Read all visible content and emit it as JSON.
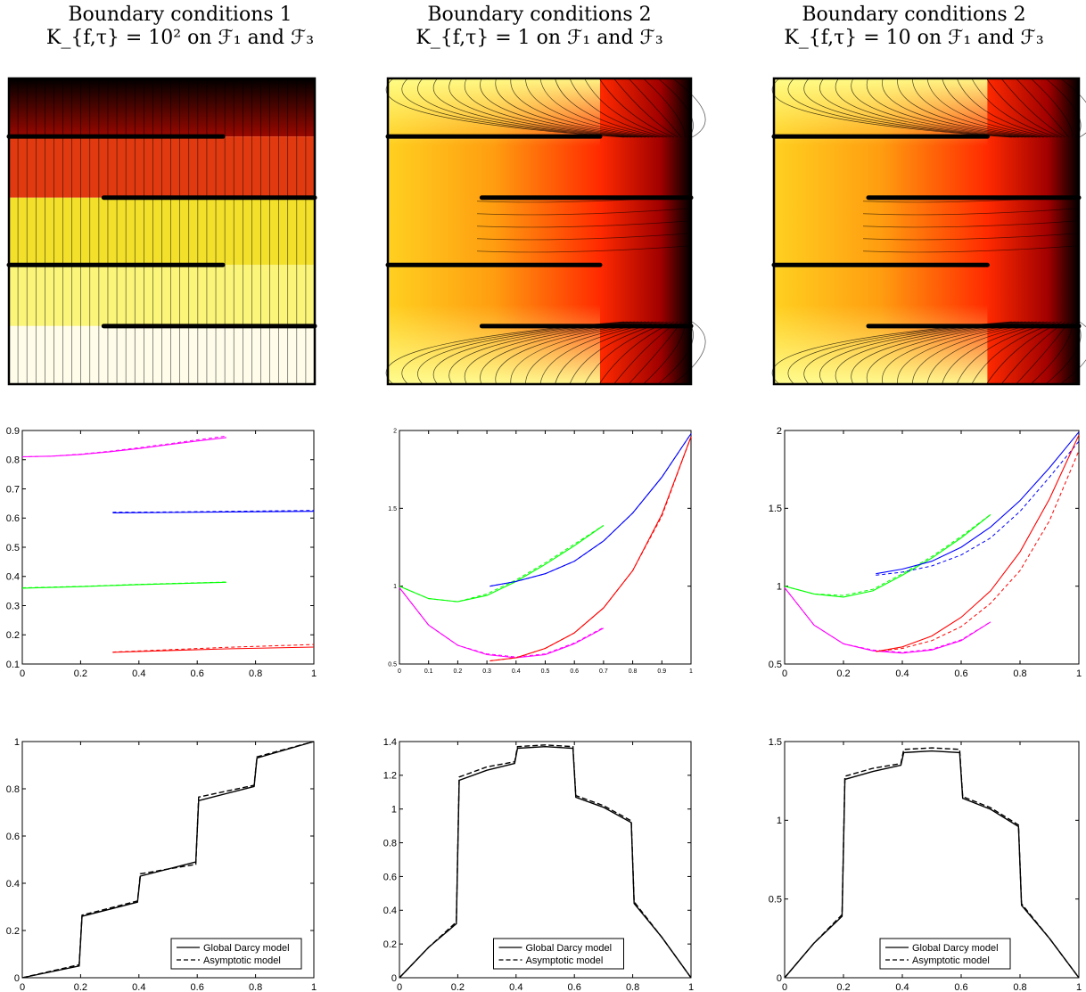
{
  "columns": [
    {
      "title_line1": "Boundary conditions 1",
      "title_line2": "K_{f,τ} = 10² on ℱ₁ and ℱ₃"
    },
    {
      "title_line1": "Boundary conditions 2",
      "title_line2": "K_{f,τ} = 1 on ℱ₁ and ℱ₃"
    },
    {
      "title_line1": "Boundary conditions 2",
      "title_line2": "K_{f,τ} = 10 on ℱ₁ and ℱ₃"
    }
  ],
  "colors": {
    "magenta": "#ff00ff",
    "blue": "#0000ff",
    "green": "#00ff00",
    "red": "#ff0000",
    "black": "#000000"
  },
  "chart_data": [
    {
      "type": "heatmap",
      "panel": "row1-col1",
      "colormap": "hot",
      "fractures_left": [
        0.81,
        0.39
      ],
      "fractures_right": [
        0.61,
        0.19
      ]
    },
    {
      "type": "heatmap",
      "panel": "row1-col2",
      "colormap": "hot",
      "fractures_left": [
        0.81,
        0.39
      ],
      "fractures_right": [
        0.61,
        0.19
      ]
    },
    {
      "type": "heatmap",
      "panel": "row1-col3",
      "colormap": "hot",
      "fractures_left": [
        0.81,
        0.39
      ],
      "fractures_right": [
        0.61,
        0.19
      ]
    },
    {
      "type": "line",
      "panel": "row2-col1",
      "xlim": [
        0,
        1
      ],
      "ylim": [
        0.1,
        0.9
      ],
      "xticks": [
        "0",
        "0.2",
        "0.4",
        "0.6",
        "0.8",
        "1"
      ],
      "yticks": [
        "0.1",
        "0.2",
        "0.3",
        "0.4",
        "0.5",
        "0.6",
        "0.7",
        "0.8",
        "0.9"
      ],
      "series": [
        {
          "color": "magenta",
          "x": [
            0,
            0.1,
            0.2,
            0.3,
            0.4,
            0.5,
            0.6,
            0.7
          ],
          "y": [
            0.81,
            0.812,
            0.818,
            0.827,
            0.838,
            0.851,
            0.864,
            0.876
          ],
          "y_asym": [
            0.81,
            0.812,
            0.819,
            0.829,
            0.841,
            0.854,
            0.868,
            0.881
          ]
        },
        {
          "color": "blue",
          "x": [
            0.31,
            0.5,
            0.7,
            1.0
          ],
          "y": [
            0.618,
            0.619,
            0.621,
            0.623
          ],
          "y_asym": [
            0.62,
            0.621,
            0.623,
            0.626
          ]
        },
        {
          "color": "green",
          "x": [
            0,
            0.2,
            0.4,
            0.7
          ],
          "y": [
            0.36,
            0.365,
            0.372,
            0.38
          ],
          "y_asym": [
            0.361,
            0.366,
            0.373,
            0.381
          ]
        },
        {
          "color": "red",
          "x": [
            0.31,
            0.5,
            0.7,
            1.0
          ],
          "y": [
            0.14,
            0.146,
            0.152,
            0.158
          ],
          "y_asym": [
            0.141,
            0.149,
            0.157,
            0.167
          ]
        }
      ]
    },
    {
      "type": "line",
      "panel": "row2-col2",
      "xlim": [
        0,
        1
      ],
      "ylim": [
        0.5,
        2
      ],
      "xticks": [
        "0",
        "0.1",
        "0.2",
        "0.3",
        "0.4",
        "0.5",
        "0.6",
        "0.7",
        "0.8",
        "0.9",
        "1"
      ],
      "yticks": [
        "0.5",
        "1",
        "1.5",
        "2"
      ],
      "series": [
        {
          "color": "green",
          "x": [
            0,
            0.1,
            0.2,
            0.3,
            0.4,
            0.5,
            0.6,
            0.7
          ],
          "y": [
            1.0,
            0.92,
            0.9,
            0.94,
            1.03,
            1.14,
            1.26,
            1.39
          ],
          "y_asym": [
            1.0,
            0.92,
            0.9,
            0.95,
            1.04,
            1.15,
            1.27,
            1.39
          ]
        },
        {
          "color": "magenta",
          "x": [
            0,
            0.1,
            0.2,
            0.3,
            0.4,
            0.5,
            0.6,
            0.7
          ],
          "y": [
            0.99,
            0.75,
            0.62,
            0.56,
            0.54,
            0.56,
            0.63,
            0.73
          ],
          "y_asym": [
            0.99,
            0.75,
            0.62,
            0.565,
            0.545,
            0.565,
            0.635,
            0.735
          ]
        },
        {
          "color": "blue",
          "x": [
            0.31,
            0.4,
            0.5,
            0.6,
            0.7,
            0.8,
            0.9,
            1.0
          ],
          "y": [
            1.0,
            1.03,
            1.08,
            1.16,
            1.29,
            1.47,
            1.7,
            1.98
          ],
          "y_asym": [
            1.0,
            1.03,
            1.08,
            1.16,
            1.29,
            1.47,
            1.7,
            1.98
          ]
        },
        {
          "color": "red",
          "x": [
            0.31,
            0.4,
            0.5,
            0.6,
            0.7,
            0.8,
            0.9,
            1.0
          ],
          "y": [
            0.52,
            0.54,
            0.6,
            0.7,
            0.86,
            1.1,
            1.46,
            1.96
          ],
          "y_asym": [
            0.52,
            0.54,
            0.6,
            0.7,
            0.86,
            1.1,
            1.45,
            1.96
          ]
        }
      ]
    },
    {
      "type": "line",
      "panel": "row2-col3",
      "xlim": [
        0,
        1
      ],
      "ylim": [
        0.5,
        2
      ],
      "xticks": [
        "0",
        "0.2",
        "0.4",
        "0.6",
        "0.8",
        "1"
      ],
      "yticks": [
        "0.5",
        "1",
        "1.5",
        "2"
      ],
      "series": [
        {
          "color": "green",
          "x": [
            0,
            0.1,
            0.2,
            0.3,
            0.4,
            0.5,
            0.6,
            0.7
          ],
          "y": [
            1.0,
            0.95,
            0.93,
            0.97,
            1.07,
            1.18,
            1.31,
            1.46
          ],
          "y_asym": [
            1.0,
            0.95,
            0.94,
            0.98,
            1.08,
            1.19,
            1.32,
            1.46
          ]
        },
        {
          "color": "magenta",
          "x": [
            0,
            0.1,
            0.2,
            0.3,
            0.4,
            0.5,
            0.6,
            0.7
          ],
          "y": [
            0.99,
            0.75,
            0.63,
            0.585,
            0.57,
            0.59,
            0.65,
            0.77
          ],
          "y_asym": [
            0.99,
            0.75,
            0.63,
            0.59,
            0.575,
            0.595,
            0.655,
            0.77
          ]
        },
        {
          "color": "blue",
          "x": [
            0.31,
            0.4,
            0.5,
            0.6,
            0.7,
            0.8,
            0.9,
            1.0
          ],
          "y": [
            1.08,
            1.11,
            1.16,
            1.25,
            1.38,
            1.55,
            1.76,
            1.99
          ],
          "y_asym": [
            1.07,
            1.09,
            1.13,
            1.2,
            1.31,
            1.48,
            1.7,
            1.93
          ]
        },
        {
          "color": "red",
          "x": [
            0.31,
            0.4,
            0.5,
            0.6,
            0.7,
            0.8,
            0.9,
            1.0
          ],
          "y": [
            0.58,
            0.61,
            0.68,
            0.8,
            0.97,
            1.22,
            1.56,
            1.97
          ],
          "y_asym": [
            0.58,
            0.6,
            0.65,
            0.74,
            0.89,
            1.1,
            1.42,
            1.87
          ]
        }
      ]
    },
    {
      "type": "line",
      "panel": "row3-col1",
      "xlim": [
        0,
        1
      ],
      "ylim": [
        0,
        1
      ],
      "xticks": [
        "0",
        "0.2",
        "0.4",
        "0.6",
        "0.8",
        "1"
      ],
      "yticks": [
        "0",
        "0.2",
        "0.4",
        "0.6",
        "0.8",
        "1"
      ],
      "legend": [
        "Global Darcy model",
        "Asymptotic model"
      ],
      "legend_position": "bottom-right",
      "series": [
        {
          "name": "Global Darcy model",
          "style": "solid",
          "x": [
            0,
            0.195,
            0.205,
            0.395,
            0.405,
            0.595,
            0.605,
            0.795,
            0.805,
            1.0
          ],
          "y": [
            0,
            0.05,
            0.26,
            0.32,
            0.43,
            0.49,
            0.75,
            0.81,
            0.93,
            1.0
          ]
        },
        {
          "name": "Asymptotic model",
          "style": "dashed",
          "x": [
            0,
            0.195,
            0.205,
            0.395,
            0.405,
            0.595,
            0.605,
            0.795,
            0.805,
            1.0
          ],
          "y": [
            0,
            0.055,
            0.265,
            0.325,
            0.44,
            0.48,
            0.765,
            0.815,
            0.935,
            1.0
          ]
        }
      ]
    },
    {
      "type": "line",
      "panel": "row3-col2",
      "xlim": [
        0,
        1
      ],
      "ylim": [
        0,
        1.4
      ],
      "xticks": [
        "0",
        "0.2",
        "0.4",
        "0.6",
        "0.8",
        "1"
      ],
      "yticks": [
        "0",
        "0.2",
        "0.4",
        "0.6",
        "0.8",
        "1",
        "1.2",
        "1.4"
      ],
      "legend": [
        "Global Darcy model",
        "Asymptotic model"
      ],
      "legend_position": "bottom-center",
      "series": [
        {
          "name": "Global Darcy model",
          "style": "solid",
          "x": [
            0,
            0.1,
            0.195,
            0.205,
            0.3,
            0.395,
            0.405,
            0.5,
            0.595,
            0.605,
            0.7,
            0.795,
            0.805,
            0.9,
            1.0
          ],
          "y": [
            0,
            0.18,
            0.32,
            1.17,
            1.23,
            1.27,
            1.36,
            1.37,
            1.36,
            1.07,
            1.01,
            0.92,
            0.44,
            0.24,
            0
          ]
        },
        {
          "name": "Asymptotic model",
          "style": "dashed",
          "x": [
            0,
            0.1,
            0.195,
            0.205,
            0.3,
            0.395,
            0.405,
            0.5,
            0.595,
            0.605,
            0.7,
            0.795,
            0.805,
            0.9,
            1.0
          ],
          "y": [
            0,
            0.18,
            0.33,
            1.19,
            1.25,
            1.28,
            1.37,
            1.38,
            1.37,
            1.08,
            1.02,
            0.93,
            0.45,
            0.24,
            0
          ]
        }
      ]
    },
    {
      "type": "line",
      "panel": "row3-col3",
      "xlim": [
        0,
        1
      ],
      "ylim": [
        0,
        1.5
      ],
      "xticks": [
        "0",
        "0.2",
        "0.4",
        "0.6",
        "0.8",
        "1"
      ],
      "yticks": [
        "0",
        "0.5",
        "1",
        "1.5"
      ],
      "legend": [
        "Global Darcy model",
        "Asymptotic model"
      ],
      "legend_position": "bottom-center",
      "series": [
        {
          "name": "Global Darcy model",
          "style": "solid",
          "x": [
            0,
            0.1,
            0.195,
            0.205,
            0.3,
            0.395,
            0.405,
            0.5,
            0.595,
            0.605,
            0.7,
            0.795,
            0.805,
            0.9,
            1.0
          ],
          "y": [
            0,
            0.22,
            0.39,
            1.26,
            1.31,
            1.35,
            1.43,
            1.44,
            1.43,
            1.14,
            1.07,
            0.96,
            0.46,
            0.25,
            0
          ]
        },
        {
          "name": "Asymptotic model",
          "style": "dashed",
          "x": [
            0,
            0.1,
            0.195,
            0.205,
            0.3,
            0.395,
            0.405,
            0.5,
            0.595,
            0.605,
            0.7,
            0.795,
            0.805,
            0.9,
            1.0
          ],
          "y": [
            0,
            0.22,
            0.4,
            1.28,
            1.33,
            1.36,
            1.45,
            1.46,
            1.45,
            1.15,
            1.08,
            0.97,
            0.47,
            0.25,
            0
          ]
        }
      ]
    }
  ]
}
